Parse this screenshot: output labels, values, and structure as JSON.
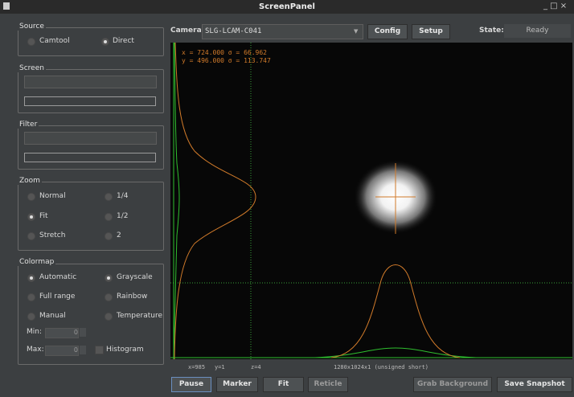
{
  "window": {
    "title": "ScreenPanel"
  },
  "source": {
    "title": "Source",
    "options": [
      "Camtool",
      "Direct"
    ]
  },
  "screen": {
    "title": "Screen"
  },
  "filter": {
    "title": "Filter"
  },
  "zoom": {
    "title": "Zoom",
    "options": [
      "Normal",
      "1/4",
      "Fit",
      "1/2",
      "Stretch",
      "2"
    ]
  },
  "colormap": {
    "title": "Colormap",
    "options": [
      "Automatic",
      "Grayscale",
      "Full range",
      "Rainbow",
      "Manual",
      "Temperature"
    ],
    "min_label": "Min:",
    "min_value": 0,
    "max_label": "Max:",
    "max_value": 0,
    "histogram": "Histogram"
  },
  "toolbar": {
    "camera_label": "Camera:",
    "camera": "SLG-LCAM-C041",
    "config": "Config",
    "setup": "Setup",
    "state_label": "State:",
    "state": "Ready"
  },
  "overlay": {
    "x_stat": "x = 724.000 σ = 66.962",
    "y_stat": "y = 496.000 σ = 113.747"
  },
  "status": {
    "x": "x=985",
    "y": "y=1",
    "z": "z=4",
    "format": "1280x1024x1 (unsigned short)"
  },
  "buttons": [
    "Pause",
    "Marker",
    "Fit",
    "Reticle",
    "Grab Background",
    "Save Snapshot"
  ]
}
